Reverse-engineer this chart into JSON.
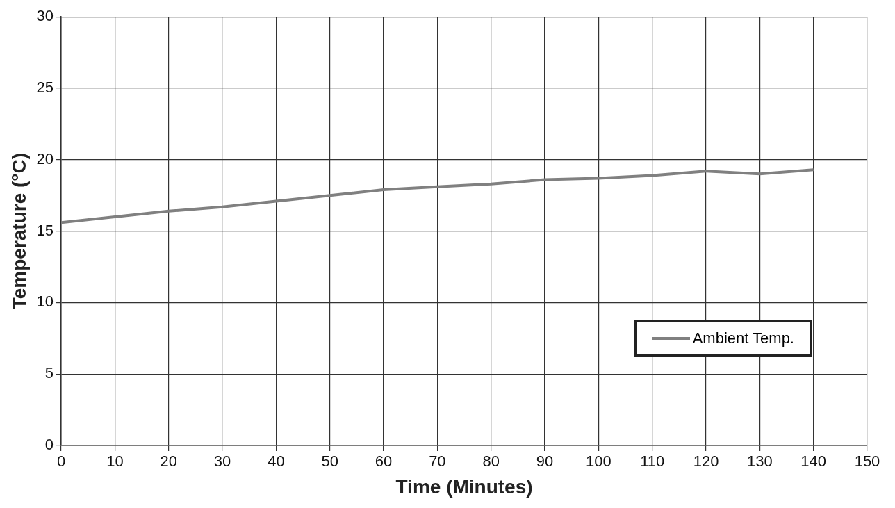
{
  "chart_data": {
    "type": "line",
    "xlabel": "Time (Minutes)",
    "ylabel": "Temperature (°C)",
    "x": [
      0,
      10,
      20,
      30,
      40,
      50,
      60,
      70,
      80,
      90,
      100,
      110,
      120,
      130,
      140
    ],
    "series": [
      {
        "name": "Ambient Temp.",
        "color": "#808080",
        "values": [
          15.6,
          16.0,
          16.4,
          16.7,
          17.1,
          17.5,
          17.9,
          18.1,
          18.3,
          18.6,
          18.7,
          18.9,
          19.2,
          19.0,
          19.3
        ]
      }
    ],
    "xlim": [
      0,
      150
    ],
    "xticks": [
      0,
      10,
      20,
      30,
      40,
      50,
      60,
      70,
      80,
      90,
      100,
      110,
      120,
      130,
      140,
      150
    ],
    "ylim": [
      0,
      30
    ],
    "yticks": [
      0,
      5,
      10,
      15,
      20,
      25,
      30
    ],
    "grid": true,
    "legend": "bottom right",
    "marker": "none",
    "line_style": "solid"
  }
}
